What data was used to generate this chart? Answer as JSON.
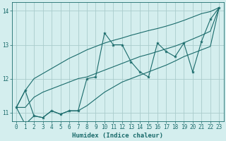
{
  "xlabel": "Humidex (Indice chaleur)",
  "bg_color": "#d4eeee",
  "grid_color": "#aacccc",
  "line_color": "#1a6b6b",
  "xlim": [
    -0.5,
    23.5
  ],
  "ylim": [
    10.75,
    14.25
  ],
  "xticks": [
    0,
    1,
    2,
    3,
    4,
    5,
    6,
    7,
    8,
    9,
    10,
    11,
    12,
    13,
    14,
    15,
    16,
    17,
    18,
    19,
    20,
    21,
    22,
    23
  ],
  "yticks": [
    11,
    12,
    13,
    14
  ],
  "x_data": [
    0,
    1,
    2,
    3,
    4,
    5,
    6,
    7,
    8,
    9,
    10,
    11,
    12,
    13,
    14,
    15,
    16,
    17,
    18,
    19,
    20,
    21,
    22,
    23
  ],
  "y_main": [
    11.15,
    11.65,
    10.9,
    10.85,
    11.05,
    10.95,
    11.05,
    11.05,
    12.0,
    12.05,
    13.35,
    13.0,
    13.0,
    12.5,
    12.2,
    12.05,
    13.05,
    12.8,
    12.65,
    13.05,
    12.2,
    13.1,
    13.75,
    14.1
  ],
  "y_upper": [
    11.15,
    11.65,
    12.0,
    12.15,
    12.3,
    12.45,
    12.6,
    12.72,
    12.85,
    12.95,
    13.05,
    13.13,
    13.2,
    13.28,
    13.35,
    13.42,
    13.48,
    13.55,
    13.63,
    13.72,
    13.82,
    13.92,
    13.98,
    14.1
  ],
  "y_lower": [
    11.15,
    10.65,
    10.9,
    10.85,
    11.05,
    10.95,
    11.05,
    11.05,
    11.2,
    11.4,
    11.6,
    11.75,
    11.9,
    12.0,
    12.1,
    12.2,
    12.3,
    12.4,
    12.52,
    12.65,
    12.75,
    12.85,
    12.95,
    14.1
  ],
  "y_mid": [
    11.15,
    11.15,
    11.45,
    11.6,
    11.7,
    11.8,
    11.9,
    12.0,
    12.05,
    12.15,
    12.25,
    12.35,
    12.45,
    12.55,
    12.65,
    12.72,
    12.8,
    12.88,
    12.96,
    13.06,
    13.17,
    13.28,
    13.4,
    14.1
  ]
}
